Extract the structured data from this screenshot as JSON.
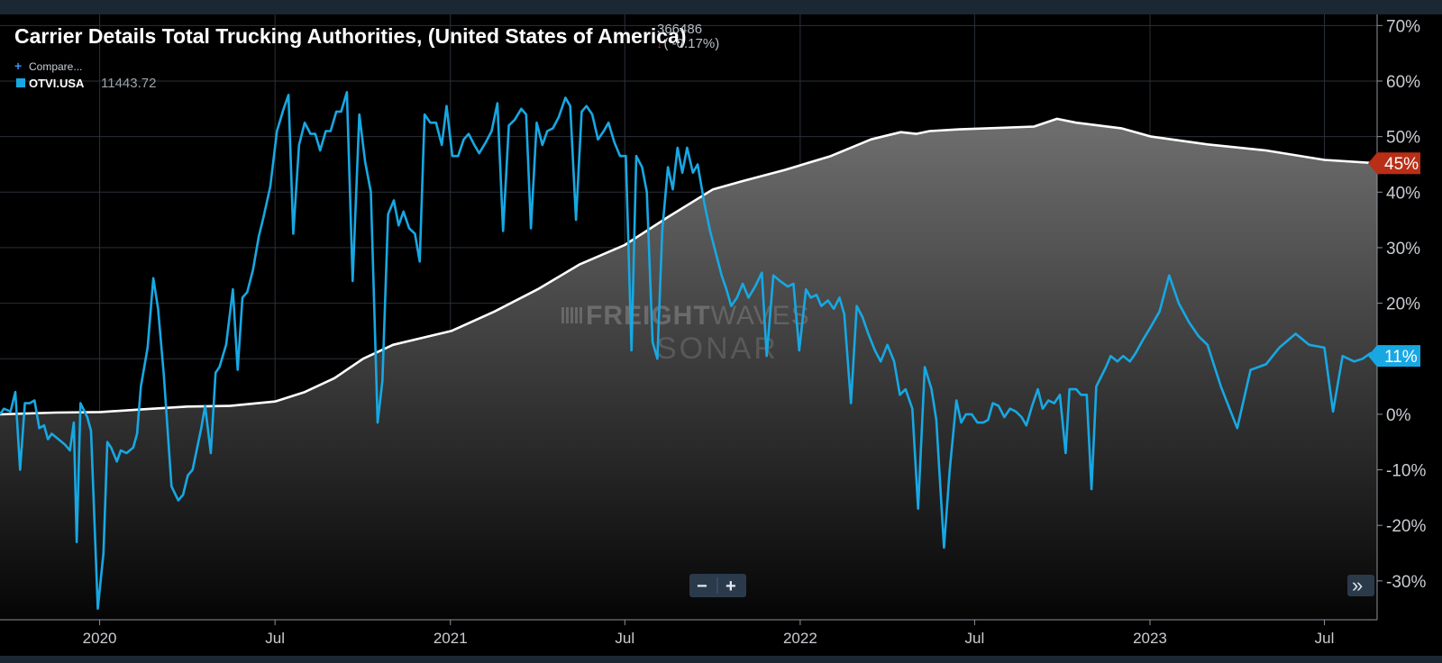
{
  "header": {
    "title": "Carrier Details Total Trucking Authorities, (United States of America)",
    "current_value": "366486",
    "change": "( -0.17%)",
    "change_arrow": "↓",
    "compare_label": "Compare...",
    "compare_plus": "+",
    "series_label": "OTVI.USA",
    "series_value": "11443.72"
  },
  "watermark": {
    "line1_bold": "FREIGHT",
    "line1_light": "WAVES",
    "line2": "SONAR"
  },
  "controls": {
    "zoom_out": "−",
    "zoom_in": "+",
    "scroll_right": "»"
  },
  "colors": {
    "background": "#000000",
    "line_white": "#ffffff",
    "line_blue": "#17a8e3",
    "badge_red": "#b92e16",
    "badge_blue": "#17a8e3"
  },
  "chart_data": {
    "type": "line",
    "title": "Carrier Details Total Trucking Authorities, (United States of America)",
    "x_range": [
      "2019-09-18",
      "2023-08-25"
    ],
    "ylim": [
      -37,
      72
    ],
    "y_unit": "%",
    "y_ticks": [
      "70%",
      "60%",
      "50%",
      "40%",
      "30%",
      "20%",
      "10%",
      "0%",
      "-10%",
      "-20%",
      "-30%"
    ],
    "x_ticks": [
      {
        "date": "2019-12-31",
        "label": "2020"
      },
      {
        "date": "2020-07-01",
        "label": "Jul"
      },
      {
        "date": "2020-12-31",
        "label": "2021"
      },
      {
        "date": "2021-07-01",
        "label": "Jul"
      },
      {
        "date": "2021-12-31",
        "label": "2022"
      },
      {
        "date": "2022-07-01",
        "label": "Jul"
      },
      {
        "date": "2022-12-31",
        "label": "2023"
      },
      {
        "date": "2023-07-01",
        "label": "Jul"
      }
    ],
    "grid": true,
    "series": [
      {
        "name": "Carrier Details Total Trucking Authorities",
        "color": "#ffffff",
        "filled": true,
        "last_label": "45%",
        "points": [
          [
            "2019-09-18",
            0.0
          ],
          [
            "2019-11-15",
            0.3
          ],
          [
            "2020-01-01",
            0.4
          ],
          [
            "2020-02-15",
            0.9
          ],
          [
            "2020-04-01",
            1.4
          ],
          [
            "2020-05-15",
            1.5
          ],
          [
            "2020-07-01",
            2.3
          ],
          [
            "2020-08-01",
            4.0
          ],
          [
            "2020-09-01",
            6.5
          ],
          [
            "2020-10-01",
            10.0
          ],
          [
            "2020-11-01",
            12.5
          ],
          [
            "2021-01-01",
            15.0
          ],
          [
            "2021-02-15",
            18.5
          ],
          [
            "2021-04-01",
            22.5
          ],
          [
            "2021-05-15",
            27.0
          ],
          [
            "2021-07-01",
            30.5
          ],
          [
            "2021-08-15",
            35.5
          ],
          [
            "2021-10-01",
            40.5
          ],
          [
            "2021-11-01",
            42.0
          ],
          [
            "2021-12-15",
            44.0
          ],
          [
            "2022-02-01",
            46.5
          ],
          [
            "2022-03-15",
            49.5
          ],
          [
            "2022-04-15",
            50.8
          ],
          [
            "2022-05-01",
            50.5
          ],
          [
            "2022-05-15",
            51.0
          ],
          [
            "2022-06-15",
            51.3
          ],
          [
            "2022-07-15",
            51.5
          ],
          [
            "2022-09-01",
            51.8
          ],
          [
            "2022-09-25",
            53.2
          ],
          [
            "2022-10-15",
            52.5
          ],
          [
            "2022-12-01",
            51.5
          ],
          [
            "2023-01-01",
            50.0
          ],
          [
            "2023-03-01",
            48.6
          ],
          [
            "2023-05-01",
            47.5
          ],
          [
            "2023-07-01",
            45.8
          ],
          [
            "2023-08-25",
            45.2
          ]
        ]
      },
      {
        "name": "OTVI.USA",
        "color": "#17a8e3",
        "filled": false,
        "last_label": "11%",
        "points": [
          [
            "2019-09-18",
            0.0
          ],
          [
            "2019-09-22",
            1.0
          ],
          [
            "2019-09-29",
            0.5
          ],
          [
            "2019-10-04",
            4.0
          ],
          [
            "2019-10-09",
            -10.0
          ],
          [
            "2019-10-14",
            2.0
          ],
          [
            "2019-10-19",
            2.0
          ],
          [
            "2019-10-24",
            2.5
          ],
          [
            "2019-10-29",
            -2.5
          ],
          [
            "2019-11-03",
            -2.0
          ],
          [
            "2019-11-07",
            -4.5
          ],
          [
            "2019-11-11",
            -3.5
          ],
          [
            "2019-11-18",
            -4.5
          ],
          [
            "2019-11-25",
            -5.5
          ],
          [
            "2019-11-30",
            -6.5
          ],
          [
            "2019-12-04",
            -1.5
          ],
          [
            "2019-12-07",
            -23.0
          ],
          [
            "2019-12-11",
            2.0
          ],
          [
            "2019-12-18",
            -0.5
          ],
          [
            "2019-12-22",
            -3.0
          ],
          [
            "2019-12-29",
            -35.0
          ],
          [
            "2020-01-04",
            -25.0
          ],
          [
            "2020-01-08",
            -5.0
          ],
          [
            "2020-01-12",
            -6.0
          ],
          [
            "2020-01-18",
            -8.5
          ],
          [
            "2020-01-22",
            -6.5
          ],
          [
            "2020-01-28",
            -7.0
          ],
          [
            "2020-02-04",
            -6.0
          ],
          [
            "2020-02-08",
            -3.5
          ],
          [
            "2020-02-12",
            5.0
          ],
          [
            "2020-02-19",
            12.0
          ],
          [
            "2020-02-25",
            24.5
          ],
          [
            "2020-03-01",
            19.0
          ],
          [
            "2020-03-07",
            7.0
          ],
          [
            "2020-03-15",
            -13.0
          ],
          [
            "2020-03-22",
            -15.5
          ],
          [
            "2020-03-27",
            -14.5
          ],
          [
            "2020-04-01",
            -11.0
          ],
          [
            "2020-04-06",
            -10.0
          ],
          [
            "2020-04-15",
            -2.5
          ],
          [
            "2020-04-19",
            1.5
          ],
          [
            "2020-04-25",
            -7.0
          ],
          [
            "2020-04-30",
            7.5
          ],
          [
            "2020-05-04",
            8.5
          ],
          [
            "2020-05-11",
            12.5
          ],
          [
            "2020-05-18",
            22.5
          ],
          [
            "2020-05-23",
            8.0
          ],
          [
            "2020-05-28",
            21.0
          ],
          [
            "2020-06-02",
            22.0
          ],
          [
            "2020-06-08",
            26.0
          ],
          [
            "2020-06-14",
            32.0
          ],
          [
            "2020-06-19",
            35.5
          ],
          [
            "2020-06-26",
            41.0
          ],
          [
            "2020-07-03",
            51.0
          ],
          [
            "2020-07-10",
            55.0
          ],
          [
            "2020-07-15",
            57.5
          ],
          [
            "2020-07-20",
            32.5
          ],
          [
            "2020-07-26",
            48.5
          ],
          [
            "2020-08-01",
            52.5
          ],
          [
            "2020-08-07",
            50.5
          ],
          [
            "2020-08-12",
            50.5
          ],
          [
            "2020-08-17",
            47.5
          ],
          [
            "2020-08-23",
            51.0
          ],
          [
            "2020-08-28",
            51.0
          ],
          [
            "2020-09-03",
            54.5
          ],
          [
            "2020-09-08",
            54.5
          ],
          [
            "2020-09-14",
            58.0
          ],
          [
            "2020-09-20",
            24.0
          ],
          [
            "2020-09-27",
            54.0
          ],
          [
            "2020-10-03",
            45.5
          ],
          [
            "2020-10-09",
            40.0
          ],
          [
            "2020-10-16",
            -1.5
          ],
          [
            "2020-10-21",
            6.0
          ],
          [
            "2020-10-27",
            36.0
          ],
          [
            "2020-11-02",
            38.5
          ],
          [
            "2020-11-07",
            34.0
          ],
          [
            "2020-11-12",
            36.5
          ],
          [
            "2020-11-18",
            33.5
          ],
          [
            "2020-11-24",
            32.5
          ],
          [
            "2020-11-29",
            27.5
          ],
          [
            "2020-12-04",
            54.0
          ],
          [
            "2020-12-10",
            52.5
          ],
          [
            "2020-12-16",
            52.5
          ],
          [
            "2020-12-22",
            48.5
          ],
          [
            "2020-12-27",
            55.5
          ],
          [
            "2021-01-02",
            46.5
          ],
          [
            "2021-01-08",
            46.5
          ],
          [
            "2021-01-14",
            49.5
          ],
          [
            "2021-01-19",
            50.5
          ],
          [
            "2021-01-25",
            48.5
          ],
          [
            "2021-01-30",
            47.0
          ],
          [
            "2021-02-06",
            49.0
          ],
          [
            "2021-02-12",
            51.0
          ],
          [
            "2021-02-18",
            56.0
          ],
          [
            "2021-02-24",
            33.0
          ],
          [
            "2021-03-02",
            52.0
          ],
          [
            "2021-03-08",
            53.0
          ],
          [
            "2021-03-15",
            55.0
          ],
          [
            "2021-03-20",
            54.0
          ],
          [
            "2021-03-25",
            33.5
          ],
          [
            "2021-03-31",
            52.5
          ],
          [
            "2021-04-06",
            48.5
          ],
          [
            "2021-04-11",
            51.0
          ],
          [
            "2021-04-17",
            51.5
          ],
          [
            "2021-04-23",
            53.5
          ],
          [
            "2021-04-30",
            57.0
          ],
          [
            "2021-05-05",
            55.5
          ],
          [
            "2021-05-11",
            35.0
          ],
          [
            "2021-05-17",
            54.5
          ],
          [
            "2021-05-22",
            55.5
          ],
          [
            "2021-05-28",
            54.0
          ],
          [
            "2021-06-03",
            49.5
          ],
          [
            "2021-06-09",
            51.0
          ],
          [
            "2021-06-14",
            52.5
          ],
          [
            "2021-06-20",
            49.0
          ],
          [
            "2021-06-26",
            46.5
          ],
          [
            "2021-07-02",
            46.5
          ],
          [
            "2021-07-08",
            11.5
          ],
          [
            "2021-07-13",
            46.5
          ],
          [
            "2021-07-19",
            44.5
          ],
          [
            "2021-07-24",
            40.0
          ],
          [
            "2021-07-30",
            13.0
          ],
          [
            "2021-08-04",
            10.0
          ],
          [
            "2021-08-09",
            33.0
          ],
          [
            "2021-08-15",
            44.5
          ],
          [
            "2021-08-20",
            40.5
          ],
          [
            "2021-08-25",
            48.0
          ],
          [
            "2021-08-30",
            43.5
          ],
          [
            "2021-09-04",
            48.0
          ],
          [
            "2021-09-10",
            43.5
          ],
          [
            "2021-09-15",
            45.0
          ],
          [
            "2021-09-22",
            38.0
          ],
          [
            "2021-09-28",
            33.0
          ],
          [
            "2021-10-04",
            29.0
          ],
          [
            "2021-10-10",
            25.0
          ],
          [
            "2021-10-15",
            22.5
          ],
          [
            "2021-10-20",
            19.5
          ],
          [
            "2021-10-26",
            21.0
          ],
          [
            "2021-11-01",
            23.5
          ],
          [
            "2021-11-07",
            21.0
          ],
          [
            "2021-11-14",
            23.0
          ],
          [
            "2021-11-21",
            25.5
          ],
          [
            "2021-11-26",
            10.5
          ],
          [
            "2021-12-03",
            25.0
          ],
          [
            "2021-12-10",
            24.0
          ],
          [
            "2021-12-18",
            23.0
          ],
          [
            "2021-12-24",
            23.5
          ],
          [
            "2021-12-30",
            11.5
          ],
          [
            "2022-01-06",
            22.5
          ],
          [
            "2022-01-11",
            21.0
          ],
          [
            "2022-01-17",
            21.5
          ],
          [
            "2022-01-22",
            19.5
          ],
          [
            "2022-01-29",
            20.5
          ],
          [
            "2022-02-04",
            19.0
          ],
          [
            "2022-02-10",
            21.0
          ],
          [
            "2022-02-15",
            18.0
          ],
          [
            "2022-02-22",
            2.0
          ],
          [
            "2022-02-28",
            19.5
          ],
          [
            "2022-03-06",
            17.5
          ],
          [
            "2022-03-12",
            14.5
          ],
          [
            "2022-03-19",
            11.5
          ],
          [
            "2022-03-25",
            9.5
          ],
          [
            "2022-04-01",
            12.5
          ],
          [
            "2022-04-08",
            9.5
          ],
          [
            "2022-04-14",
            3.5
          ],
          [
            "2022-04-20",
            4.5
          ],
          [
            "2022-04-27",
            1.0
          ],
          [
            "2022-05-03",
            -17.0
          ],
          [
            "2022-05-10",
            8.5
          ],
          [
            "2022-05-17",
            4.5
          ],
          [
            "2022-05-22",
            -1.0
          ],
          [
            "2022-05-30",
            -24.0
          ],
          [
            "2022-06-05",
            -10.0
          ],
          [
            "2022-06-12",
            2.5
          ],
          [
            "2022-06-17",
            -1.5
          ],
          [
            "2022-06-22",
            0.0
          ],
          [
            "2022-06-28",
            0.0
          ],
          [
            "2022-07-04",
            -1.5
          ],
          [
            "2022-07-10",
            -1.5
          ],
          [
            "2022-07-15",
            -1.0
          ],
          [
            "2022-07-20",
            2.0
          ],
          [
            "2022-07-26",
            1.5
          ],
          [
            "2022-08-01",
            -0.5
          ],
          [
            "2022-08-07",
            1.0
          ],
          [
            "2022-08-13",
            0.5
          ],
          [
            "2022-08-19",
            -0.5
          ],
          [
            "2022-08-24",
            -2.0
          ],
          [
            "2022-08-30",
            1.5
          ],
          [
            "2022-09-05",
            4.5
          ],
          [
            "2022-09-10",
            1.0
          ],
          [
            "2022-09-16",
            2.5
          ],
          [
            "2022-09-22",
            2.0
          ],
          [
            "2022-09-28",
            3.5
          ],
          [
            "2022-10-04",
            -7.0
          ],
          [
            "2022-10-08",
            4.5
          ],
          [
            "2022-10-15",
            4.5
          ],
          [
            "2022-10-20",
            3.5
          ],
          [
            "2022-10-26",
            3.5
          ],
          [
            "2022-10-31",
            -13.5
          ],
          [
            "2022-11-05",
            5.0
          ],
          [
            "2022-11-15",
            8.5
          ],
          [
            "2022-11-20",
            10.5
          ],
          [
            "2022-11-27",
            9.5
          ],
          [
            "2022-12-03",
            10.5
          ],
          [
            "2022-12-10",
            9.5
          ],
          [
            "2022-12-16",
            11.0
          ],
          [
            "2022-12-24",
            13.5
          ],
          [
            "2022-12-31",
            15.5
          ],
          [
            "2023-01-10",
            18.5
          ],
          [
            "2023-01-20",
            25.0
          ],
          [
            "2023-01-30",
            20.0
          ],
          [
            "2023-02-10",
            16.5
          ],
          [
            "2023-02-20",
            14.0
          ],
          [
            "2023-03-01",
            12.5
          ],
          [
            "2023-03-15",
            5.0
          ],
          [
            "2023-04-01",
            -2.5
          ],
          [
            "2023-04-15",
            8.0
          ],
          [
            "2023-05-01",
            9.0
          ],
          [
            "2023-05-15",
            12.0
          ],
          [
            "2023-06-01",
            14.5
          ],
          [
            "2023-06-15",
            12.5
          ],
          [
            "2023-07-01",
            12.0
          ],
          [
            "2023-07-10",
            0.5
          ],
          [
            "2023-07-20",
            10.5
          ],
          [
            "2023-08-01",
            9.5
          ],
          [
            "2023-08-10",
            10.0
          ],
          [
            "2023-08-18",
            11.0
          ],
          [
            "2023-08-25",
            10.5
          ]
        ]
      }
    ]
  }
}
